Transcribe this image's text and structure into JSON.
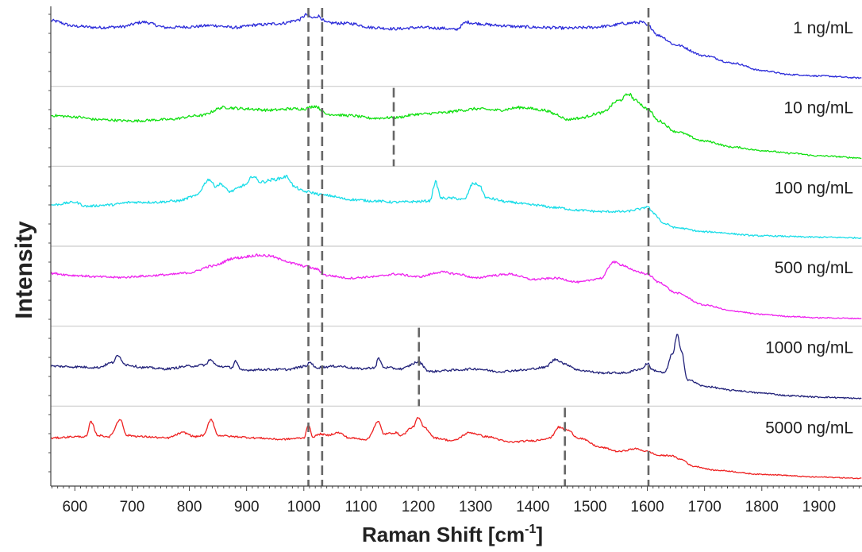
{
  "chart_data": {
    "type": "line",
    "title": "",
    "xlabel": "Raman Shift [cm",
    "xlabel_sup": "-1",
    "xlabel_end": "]",
    "ylabel": "Intensity",
    "xlim": [
      558,
      1975
    ],
    "x_ticks": [
      "600",
      "700",
      "800",
      "900",
      "1000",
      "1100",
      "1200",
      "1300",
      "1400",
      "1500",
      "1600",
      "1700",
      "1800",
      "1900"
    ],
    "grid": false,
    "offset_panels": true,
    "series": [
      {
        "name": "1 ng/mL",
        "color": "#2b2bd9",
        "noise": 0.05,
        "points": [
          [
            560,
            0.88
          ],
          [
            600,
            0.8
          ],
          [
            640,
            0.78
          ],
          [
            680,
            0.79
          ],
          [
            720,
            0.86
          ],
          [
            760,
            0.78
          ],
          [
            800,
            0.79
          ],
          [
            840,
            0.81
          ],
          [
            880,
            0.78
          ],
          [
            920,
            0.82
          ],
          [
            960,
            0.84
          ],
          [
            990,
            0.89
          ],
          [
            1005,
            0.97
          ],
          [
            1015,
            0.92
          ],
          [
            1025,
            0.95
          ],
          [
            1040,
            0.85
          ],
          [
            1080,
            0.84
          ],
          [
            1120,
            0.78
          ],
          [
            1160,
            0.76
          ],
          [
            1200,
            0.78
          ],
          [
            1240,
            0.77
          ],
          [
            1265,
            0.75
          ],
          [
            1285,
            0.86
          ],
          [
            1300,
            0.84
          ],
          [
            1340,
            0.81
          ],
          [
            1380,
            0.79
          ],
          [
            1420,
            0.78
          ],
          [
            1460,
            0.77
          ],
          [
            1500,
            0.78
          ],
          [
            1530,
            0.8
          ],
          [
            1560,
            0.84
          ],
          [
            1590,
            0.86
          ],
          [
            1602,
            0.8
          ],
          [
            1620,
            0.66
          ],
          [
            1650,
            0.52
          ],
          [
            1700,
            0.36
          ],
          [
            1750,
            0.25
          ],
          [
            1800,
            0.14
          ],
          [
            1850,
            0.08
          ],
          [
            1900,
            0.06
          ],
          [
            1975,
            0.03
          ]
        ]
      },
      {
        "name": "10 ng/mL",
        "color": "#11e011",
        "noise": 0.05,
        "points": [
          [
            560,
            0.66
          ],
          [
            600,
            0.64
          ],
          [
            640,
            0.6
          ],
          [
            700,
            0.58
          ],
          [
            760,
            0.6
          ],
          [
            820,
            0.66
          ],
          [
            860,
            0.78
          ],
          [
            900,
            0.76
          ],
          [
            940,
            0.74
          ],
          [
            980,
            0.76
          ],
          [
            1000,
            0.76
          ],
          [
            1020,
            0.8
          ],
          [
            1040,
            0.68
          ],
          [
            1080,
            0.66
          ],
          [
            1120,
            0.62
          ],
          [
            1160,
            0.63
          ],
          [
            1200,
            0.68
          ],
          [
            1240,
            0.7
          ],
          [
            1280,
            0.74
          ],
          [
            1300,
            0.76
          ],
          [
            1340,
            0.74
          ],
          [
            1380,
            0.78
          ],
          [
            1420,
            0.74
          ],
          [
            1440,
            0.68
          ],
          [
            1460,
            0.6
          ],
          [
            1480,
            0.62
          ],
          [
            1520,
            0.7
          ],
          [
            1550,
            0.88
          ],
          [
            1568,
            0.98
          ],
          [
            1580,
            0.88
          ],
          [
            1600,
            0.76
          ],
          [
            1620,
            0.58
          ],
          [
            1650,
            0.42
          ],
          [
            1700,
            0.28
          ],
          [
            1750,
            0.19
          ],
          [
            1800,
            0.14
          ],
          [
            1850,
            0.1
          ],
          [
            1900,
            0.06
          ],
          [
            1975,
            0.03
          ]
        ]
      },
      {
        "name": "100 ng/mL",
        "color": "#19dde8",
        "noise": 0.05,
        "points": [
          [
            560,
            0.52
          ],
          [
            600,
            0.56
          ],
          [
            620,
            0.5
          ],
          [
            660,
            0.52
          ],
          [
            700,
            0.56
          ],
          [
            740,
            0.56
          ],
          [
            780,
            0.58
          ],
          [
            810,
            0.65
          ],
          [
            835,
            0.9
          ],
          [
            845,
            0.8
          ],
          [
            855,
            0.83
          ],
          [
            870,
            0.72
          ],
          [
            900,
            0.82
          ],
          [
            910,
            0.95
          ],
          [
            925,
            0.86
          ],
          [
            950,
            0.9
          ],
          [
            970,
            0.94
          ],
          [
            985,
            0.78
          ],
          [
            1000,
            0.72
          ],
          [
            1040,
            0.66
          ],
          [
            1080,
            0.6
          ],
          [
            1120,
            0.58
          ],
          [
            1160,
            0.56
          ],
          [
            1200,
            0.57
          ],
          [
            1220,
            0.58
          ],
          [
            1230,
            0.86
          ],
          [
            1240,
            0.62
          ],
          [
            1260,
            0.62
          ],
          [
            1280,
            0.6
          ],
          [
            1296,
            0.84
          ],
          [
            1305,
            0.82
          ],
          [
            1320,
            0.62
          ],
          [
            1360,
            0.56
          ],
          [
            1400,
            0.52
          ],
          [
            1440,
            0.48
          ],
          [
            1480,
            0.44
          ],
          [
            1520,
            0.42
          ],
          [
            1560,
            0.42
          ],
          [
            1590,
            0.46
          ],
          [
            1600,
            0.5
          ],
          [
            1610,
            0.4
          ],
          [
            1630,
            0.24
          ],
          [
            1650,
            0.18
          ],
          [
            1700,
            0.12
          ],
          [
            1800,
            0.06
          ],
          [
            1900,
            0.04
          ],
          [
            1975,
            0.03
          ]
        ]
      },
      {
        "name": "500 ng/mL",
        "color": "#ee22ee",
        "noise": 0.04,
        "points": [
          [
            560,
            0.69
          ],
          [
            600,
            0.66
          ],
          [
            640,
            0.64
          ],
          [
            680,
            0.63
          ],
          [
            720,
            0.65
          ],
          [
            760,
            0.67
          ],
          [
            800,
            0.7
          ],
          [
            840,
            0.8
          ],
          [
            880,
            0.92
          ],
          [
            920,
            0.96
          ],
          [
            940,
            0.95
          ],
          [
            960,
            0.9
          ],
          [
            980,
            0.84
          ],
          [
            1000,
            0.8
          ],
          [
            1020,
            0.76
          ],
          [
            1040,
            0.66
          ],
          [
            1080,
            0.62
          ],
          [
            1120,
            0.64
          ],
          [
            1160,
            0.68
          ],
          [
            1200,
            0.64
          ],
          [
            1240,
            0.71
          ],
          [
            1270,
            0.68
          ],
          [
            1300,
            0.62
          ],
          [
            1330,
            0.66
          ],
          [
            1360,
            0.68
          ],
          [
            1400,
            0.6
          ],
          [
            1440,
            0.62
          ],
          [
            1480,
            0.56
          ],
          [
            1520,
            0.62
          ],
          [
            1540,
            0.86
          ],
          [
            1555,
            0.82
          ],
          [
            1580,
            0.72
          ],
          [
            1600,
            0.68
          ],
          [
            1620,
            0.56
          ],
          [
            1650,
            0.4
          ],
          [
            1700,
            0.22
          ],
          [
            1750,
            0.13
          ],
          [
            1800,
            0.08
          ],
          [
            1850,
            0.05
          ],
          [
            1900,
            0.03
          ],
          [
            1975,
            0.02
          ]
        ]
      },
      {
        "name": "1000 ng/mL",
        "color": "#22227a",
        "noise": 0.05,
        "points": [
          [
            560,
            0.5
          ],
          [
            600,
            0.49
          ],
          [
            640,
            0.48
          ],
          [
            665,
            0.55
          ],
          [
            675,
            0.65
          ],
          [
            690,
            0.52
          ],
          [
            720,
            0.48
          ],
          [
            760,
            0.46
          ],
          [
            800,
            0.5
          ],
          [
            830,
            0.52
          ],
          [
            835,
            0.6
          ],
          [
            850,
            0.5
          ],
          [
            875,
            0.48
          ],
          [
            880,
            0.58
          ],
          [
            890,
            0.44
          ],
          [
            930,
            0.45
          ],
          [
            970,
            0.45
          ],
          [
            1005,
            0.5
          ],
          [
            1010,
            0.57
          ],
          [
            1020,
            0.48
          ],
          [
            1060,
            0.5
          ],
          [
            1100,
            0.46
          ],
          [
            1125,
            0.48
          ],
          [
            1130,
            0.62
          ],
          [
            1140,
            0.48
          ],
          [
            1170,
            0.46
          ],
          [
            1200,
            0.56
          ],
          [
            1220,
            0.42
          ],
          [
            1260,
            0.44
          ],
          [
            1300,
            0.46
          ],
          [
            1340,
            0.42
          ],
          [
            1380,
            0.44
          ],
          [
            1420,
            0.48
          ],
          [
            1440,
            0.6
          ],
          [
            1460,
            0.52
          ],
          [
            1480,
            0.44
          ],
          [
            1520,
            0.4
          ],
          [
            1560,
            0.4
          ],
          [
            1590,
            0.46
          ],
          [
            1600,
            0.54
          ],
          [
            1610,
            0.44
          ],
          [
            1630,
            0.4
          ],
          [
            1645,
            0.7
          ],
          [
            1652,
            0.97
          ],
          [
            1660,
            0.7
          ],
          [
            1670,
            0.3
          ],
          [
            1700,
            0.2
          ],
          [
            1750,
            0.14
          ],
          [
            1800,
            0.1
          ],
          [
            1850,
            0.06
          ],
          [
            1900,
            0.04
          ],
          [
            1975,
            0.02
          ]
        ]
      },
      {
        "name": "5000 ng/mL",
        "color": "#ee2222",
        "noise": 0.035,
        "points": [
          [
            560,
            0.62
          ],
          [
            600,
            0.64
          ],
          [
            620,
            0.64
          ],
          [
            628,
            0.86
          ],
          [
            640,
            0.66
          ],
          [
            660,
            0.64
          ],
          [
            680,
            0.9
          ],
          [
            690,
            0.66
          ],
          [
            720,
            0.64
          ],
          [
            760,
            0.62
          ],
          [
            790,
            0.7
          ],
          [
            810,
            0.64
          ],
          [
            825,
            0.66
          ],
          [
            838,
            0.9
          ],
          [
            850,
            0.66
          ],
          [
            880,
            0.64
          ],
          [
            920,
            0.62
          ],
          [
            960,
            0.6
          ],
          [
            1000,
            0.62
          ],
          [
            1008,
            0.82
          ],
          [
            1015,
            0.64
          ],
          [
            1030,
            0.68
          ],
          [
            1040,
            0.66
          ],
          [
            1060,
            0.7
          ],
          [
            1080,
            0.62
          ],
          [
            1110,
            0.6
          ],
          [
            1130,
            0.86
          ],
          [
            1140,
            0.68
          ],
          [
            1160,
            0.7
          ],
          [
            1170,
            0.66
          ],
          [
            1190,
            0.78
          ],
          [
            1200,
            0.92
          ],
          [
            1210,
            0.78
          ],
          [
            1230,
            0.62
          ],
          [
            1260,
            0.58
          ],
          [
            1290,
            0.7
          ],
          [
            1320,
            0.64
          ],
          [
            1360,
            0.56
          ],
          [
            1400,
            0.58
          ],
          [
            1430,
            0.62
          ],
          [
            1445,
            0.78
          ],
          [
            1460,
            0.74
          ],
          [
            1480,
            0.62
          ],
          [
            1520,
            0.48
          ],
          [
            1550,
            0.42
          ],
          [
            1580,
            0.46
          ],
          [
            1600,
            0.42
          ],
          [
            1620,
            0.36
          ],
          [
            1640,
            0.36
          ],
          [
            1660,
            0.3
          ],
          [
            1680,
            0.2
          ],
          [
            1720,
            0.14
          ],
          [
            1800,
            0.08
          ],
          [
            1900,
            0.04
          ],
          [
            1975,
            0.02
          ]
        ]
      }
    ],
    "reference_lines": [
      {
        "x": 1008,
        "from_panel": 0,
        "to_panel": 5
      },
      {
        "x": 1032,
        "from_panel": 0,
        "to_panel": 5
      },
      {
        "x": 1602,
        "from_panel": 0,
        "to_panel": 5
      },
      {
        "x": 1157,
        "from_panel": 1,
        "to_panel": 1
      },
      {
        "x": 1201,
        "from_panel": 4,
        "to_panel": 4
      },
      {
        "x": 1456,
        "from_panel": 5,
        "to_panel": 5
      }
    ],
    "colors": {
      "axis": "#444444",
      "separator": "#cccccc",
      "reference": "#666666"
    }
  }
}
